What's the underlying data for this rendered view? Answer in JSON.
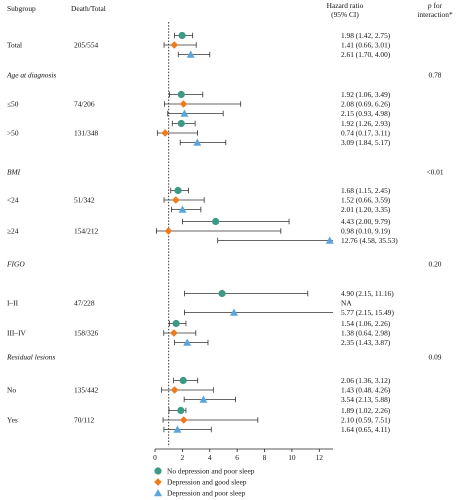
{
  "headers": {
    "subgroup": "Subgroup",
    "death_total": "Death/Total",
    "hr_line1": "Hazard ratio",
    "hr_line2": "(95% CI)",
    "p_line1": "p",
    "p_line1_rest": " for",
    "p_line2": "interaction*"
  },
  "rows": [
    {
      "label": "Total",
      "italic": false,
      "count": "205/554",
      "p": "",
      "ci": [
        "1.98 (1.42, 2.75)",
        "1.41 (0.66, 3.01)",
        "2.61 (1.70, 4.00)"
      ],
      "values": [
        [
          1.98,
          1.42,
          2.75
        ],
        [
          1.41,
          0.66,
          3.01
        ],
        [
          2.61,
          1.7,
          4.0
        ]
      ]
    },
    {
      "label": "Age at diagnosis",
      "italic": true,
      "count": "",
      "p": "0.78",
      "ci": [],
      "values": []
    },
    {
      "label": "≤50",
      "italic": false,
      "count": "74/206",
      "p": "",
      "ci": [
        "1.92 (1.06, 3.49)",
        "2.08 (0.69, 6.26)",
        "2.15 (0.93, 4.98)"
      ],
      "values": [
        [
          1.92,
          1.06,
          3.49
        ],
        [
          2.08,
          0.69,
          6.26
        ],
        [
          2.15,
          0.93,
          4.98
        ]
      ]
    },
    {
      "label": ">50",
      "italic": false,
      "count": "131/348",
      "p": "",
      "ci": [
        "1.92 (1.26, 2.93)",
        "0.74 (0.17, 3.11)",
        "3.09 (1.84, 5.17)"
      ],
      "values": [
        [
          1.92,
          1.26,
          2.93
        ],
        [
          0.74,
          0.17,
          3.11
        ],
        [
          3.09,
          1.84,
          5.17
        ]
      ]
    },
    {
      "label": "BMI",
      "italic": true,
      "count": "",
      "p": "<0.01",
      "ci": [],
      "values": []
    },
    {
      "label": "<24",
      "italic": false,
      "count": "51/342",
      "p": "",
      "ci": [
        "1.68 (1.15, 2.45)",
        "1.52 (0.66, 3.59)",
        "2.01 (1.20, 3.35)"
      ],
      "values": [
        [
          1.68,
          1.15,
          2.45
        ],
        [
          1.52,
          0.66,
          3.59
        ],
        [
          2.01,
          1.2,
          3.35
        ]
      ]
    },
    {
      "label": "≥24",
      "italic": false,
      "count": "154/212",
      "p": "",
      "ci": [
        "4.43 (2.00, 9.79)",
        "0.98 (0.10, 9.19)",
        "12.76 (4.58, 35.53)"
      ],
      "values": [
        [
          4.43,
          2.0,
          9.79
        ],
        [
          0.98,
          0.1,
          9.19
        ],
        [
          12.76,
          4.58,
          35.53
        ]
      ]
    },
    {
      "label": "FIGO",
      "italic": true,
      "count": "",
      "p": "0.20",
      "ci": [],
      "values": []
    },
    {
      "label": "I–II",
      "italic": false,
      "count": "47/228",
      "p": "",
      "ci": [
        "4.90 (2.15, 11.16)",
        "NA",
        "5.77 (2.15, 15.49)"
      ],
      "values": [
        [
          4.9,
          2.15,
          11.16
        ],
        null,
        [
          5.77,
          2.15,
          15.49
        ]
      ]
    },
    {
      "label": "III–IV",
      "italic": false,
      "count": "158/326",
      "p": "",
      "ci": [
        "1.54 (1.06, 2.26)",
        "1.38 (0.64, 2.98)",
        "2.35 (1.43, 3.87)"
      ],
      "values": [
        [
          1.54,
          1.06,
          2.26
        ],
        [
          1.38,
          0.64,
          2.98
        ],
        [
          2.35,
          1.43,
          3.87
        ]
      ]
    },
    {
      "label": "Residual lesions",
      "italic": true,
      "count": "",
      "p": "0.09",
      "ci": [],
      "values": []
    },
    {
      "label": "No",
      "italic": false,
      "count": "135/442",
      "p": "",
      "ci": [
        "2.06 (1.36, 3.12)",
        "1.43 (0.48, 4.26)",
        "3.54 (2.13, 5.88)"
      ],
      "values": [
        [
          2.06,
          1.36,
          3.12
        ],
        [
          1.43,
          0.48,
          4.26
        ],
        [
          3.54,
          2.13,
          5.88
        ]
      ]
    },
    {
      "label": "Yes",
      "italic": false,
      "count": "70/112",
      "p": "",
      "ci": [
        "1.89 (1.02, 2.26)",
        "2.10 (0.59, 7.51)",
        "1.64 (0.65, 4.11)"
      ],
      "values": [
        [
          1.89,
          1.02,
          2.26
        ],
        [
          2.1,
          0.59,
          7.51
        ],
        [
          1.64,
          0.65,
          4.11
        ]
      ]
    }
  ],
  "chart_data": {
    "type": "scatter",
    "title": "",
    "xlabel": "",
    "ylabel": "",
    "xlim": [
      0,
      13
    ],
    "xticks": [
      0,
      2,
      4,
      6,
      8,
      10,
      12
    ],
    "reference_line": 1,
    "series": [
      {
        "name": "No depression and poor sleep",
        "color": "#3a9a84",
        "marker": "circle"
      },
      {
        "name": "Depression and good sleep",
        "color": "#ef7a1c",
        "marker": "diamond"
      },
      {
        "name": "Depression and poor sleep",
        "color": "#5aa6dc",
        "marker": "triangle"
      }
    ],
    "legend_position": "bottom"
  }
}
